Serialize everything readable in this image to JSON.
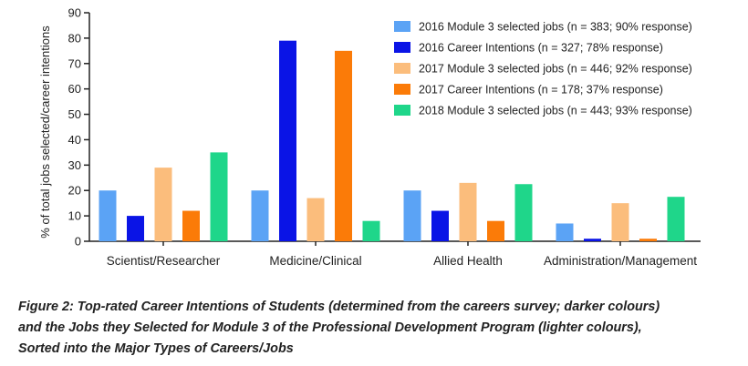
{
  "chart_data": {
    "type": "bar",
    "ylabel": "% of total jobs selected/career intentions",
    "xlabel": "",
    "ylim": [
      0,
      90
    ],
    "yticks": [
      0,
      10,
      20,
      30,
      40,
      50,
      60,
      70,
      80,
      90
    ],
    "grid": false,
    "legend_position": "top-right",
    "categories": [
      "Scientist/Researcher",
      "Medicine/Clinical",
      "Allied Health",
      "Administration/Management"
    ],
    "series": [
      {
        "name": "2016 Module 3 selected jobs (n = 383; 90% response)",
        "color": "#5ba3f5",
        "values": [
          20,
          20,
          20,
          7
        ]
      },
      {
        "name": "2016 Career Intentions (n = 327; 78% response)",
        "color": "#0a14e6",
        "values": [
          10,
          79,
          12,
          1
        ]
      },
      {
        "name": "2017 Module 3 selected jobs (n = 446; 92% response)",
        "color": "#fbbd7c",
        "values": [
          29,
          17,
          23,
          15
        ]
      },
      {
        "name": "2017 Career Intentions (n = 178; 37% response)",
        "color": "#fb7b08",
        "values": [
          12,
          75,
          8,
          1
        ]
      },
      {
        "name": "2018 Module 3 selected jobs (n = 443; 93% response)",
        "color": "#1fd68a",
        "values": [
          35,
          8,
          22.5,
          17.5
        ]
      }
    ]
  },
  "caption": {
    "lines": [
      "Figure 2: Top-rated Career Intentions of Students (determined from the careers survey; darker colours)",
      "and the Jobs they Selected for Module 3 of the Professional Development Program (lighter colours),",
      "Sorted into the Major Types of Careers/Jobs"
    ]
  }
}
